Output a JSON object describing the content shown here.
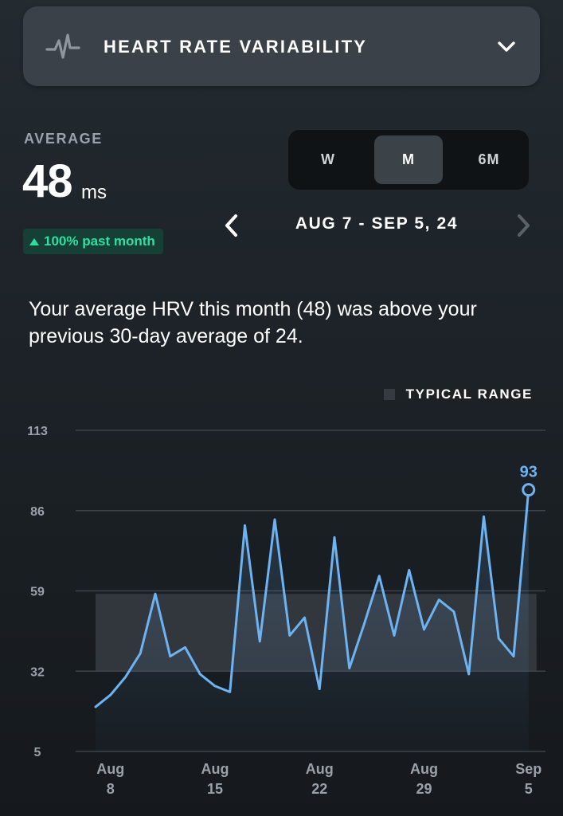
{
  "header": {
    "title": "HEART RATE VARIABILITY",
    "icon": "heartbeat-pulse-icon",
    "chevron_icon": "chevron-down-icon"
  },
  "summary": {
    "label": "AVERAGE",
    "value": "48",
    "unit": "ms",
    "change_text": "100% past month",
    "change_direction": "up",
    "change_color": "#2de0a1"
  },
  "period_tabs": [
    {
      "label": "W",
      "active": false
    },
    {
      "label": "M",
      "active": true
    },
    {
      "label": "6M",
      "active": false
    }
  ],
  "date_range": {
    "label": "AUG 7 - SEP 5, 24",
    "prev_icon": "chevron-left-icon",
    "next_icon": "chevron-right-icon",
    "next_enabled": false
  },
  "insight_text": "Your average HRV this month (48) was above your previous 30-day average of 24.",
  "legend": {
    "label": "TYPICAL RANGE"
  },
  "colors": {
    "line": "#6db3f2",
    "range_band": "#353b41",
    "accent_green": "#2de0a1"
  },
  "chart_data": {
    "type": "line",
    "title": "",
    "xlabel": "",
    "ylabel": "",
    "ylim": [
      5,
      113
    ],
    "y_ticks": [
      "113",
      "86",
      "59",
      "32",
      "5"
    ],
    "x_ticks": [
      {
        "line1": "Aug",
        "line2": "8",
        "day": 1
      },
      {
        "line1": "Aug",
        "line2": "15",
        "day": 8
      },
      {
        "line1": "Aug",
        "line2": "22",
        "day": 15
      },
      {
        "line1": "Aug",
        "line2": "29",
        "day": 22
      },
      {
        "line1": "Sep",
        "line2": "5",
        "day": 29
      }
    ],
    "typical_range": [
      32,
      58
    ],
    "highlight": {
      "label": "93",
      "index": 29
    },
    "series": [
      {
        "x": [
          0,
          1,
          2,
          3,
          4,
          5,
          6,
          7,
          8,
          9,
          10,
          11,
          12,
          13,
          14,
          15,
          16,
          17,
          18,
          19,
          20,
          21,
          22,
          23,
          24,
          25,
          26,
          27,
          28,
          29
        ],
        "values": [
          20,
          24,
          30,
          38,
          58,
          37,
          40,
          31,
          27,
          25,
          81,
          42,
          83,
          44,
          50,
          26,
          77,
          33,
          48,
          64,
          44,
          66,
          46,
          56,
          52,
          31,
          84,
          43,
          37,
          93
        ]
      }
    ],
    "grid": true,
    "legend_position": "top-right"
  }
}
